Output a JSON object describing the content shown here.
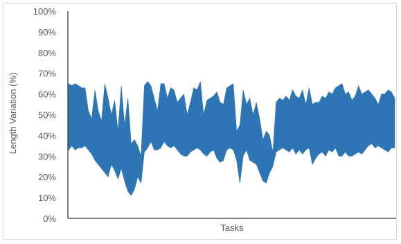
{
  "chart_data": {
    "type": "area",
    "title": "",
    "xlabel": "Tasks",
    "ylabel": "Length Variation (%)",
    "ylim": [
      0,
      100
    ],
    "y_ticks": [
      "0%",
      "10%",
      "20%",
      "30%",
      "40%",
      "50%",
      "60%",
      "70%",
      "80%",
      "90%",
      "100%"
    ],
    "grid": false,
    "legend": "none",
    "fill_color": "#2E75B6",
    "series": [
      {
        "x": [
          1,
          2,
          3,
          4,
          5,
          6,
          7,
          8,
          9,
          10,
          11,
          12,
          13,
          14,
          15,
          16,
          17,
          18,
          19,
          20,
          21,
          22,
          23,
          24,
          25,
          26,
          27,
          28,
          29,
          30,
          31,
          32,
          33,
          34,
          35,
          36,
          37,
          38,
          39,
          40,
          41,
          42,
          43,
          44,
          45,
          46,
          47,
          48,
          49,
          50,
          51,
          52,
          53,
          54,
          55,
          56,
          57,
          58,
          59,
          60,
          61,
          62,
          63,
          64,
          65,
          66,
          67,
          68,
          69,
          70,
          71,
          72,
          73,
          74,
          75,
          76,
          77,
          78,
          79,
          80,
          81,
          82,
          83,
          84,
          85,
          86,
          87,
          88,
          89,
          90,
          91,
          92,
          93,
          94,
          95,
          96,
          97,
          98,
          99,
          100
        ],
        "upper": [
          65,
          64,
          65,
          64,
          63,
          63,
          52,
          48,
          62,
          52,
          47,
          65,
          58,
          50,
          57,
          42,
          64,
          45,
          58,
          36,
          38,
          35,
          30,
          64,
          66,
          64,
          58,
          52,
          65,
          65,
          58,
          63,
          62,
          56,
          58,
          60,
          50,
          56,
          63,
          62,
          66,
          50,
          57,
          58,
          59,
          61,
          56,
          55,
          63,
          64,
          65,
          42,
          45,
          62,
          55,
          58,
          50,
          56,
          48,
          38,
          42,
          40,
          32,
          56,
          58,
          57,
          59,
          57,
          62,
          59,
          58,
          62,
          55,
          63,
          55,
          56,
          56,
          59,
          58,
          61,
          60,
          63,
          64,
          65,
          60,
          61,
          57,
          59,
          64,
          60,
          61,
          62,
          60,
          58,
          55,
          60,
          60,
          62,
          61,
          58
        ],
        "lower": [
          33,
          35,
          33,
          34,
          34,
          35,
          33,
          31,
          28,
          26,
          24,
          22,
          20,
          26,
          23,
          19,
          24,
          18,
          13,
          11,
          14,
          20,
          17,
          32,
          34,
          37,
          33,
          33,
          34,
          37,
          35,
          34,
          35,
          33,
          31,
          30,
          30,
          32,
          33,
          34,
          33,
          31,
          30,
          32,
          33,
          29,
          27,
          28,
          33,
          34,
          33,
          28,
          17,
          30,
          33,
          28,
          27,
          26,
          22,
          18,
          17,
          22,
          25,
          32,
          33,
          34,
          33,
          32,
          34,
          31,
          33,
          31,
          33,
          34,
          26,
          29,
          31,
          32,
          30,
          33,
          32,
          34,
          30,
          30,
          32,
          30,
          30,
          31,
          32,
          31,
          33,
          35,
          36,
          34,
          35,
          34,
          33,
          32,
          34,
          34
        ]
      }
    ]
  }
}
